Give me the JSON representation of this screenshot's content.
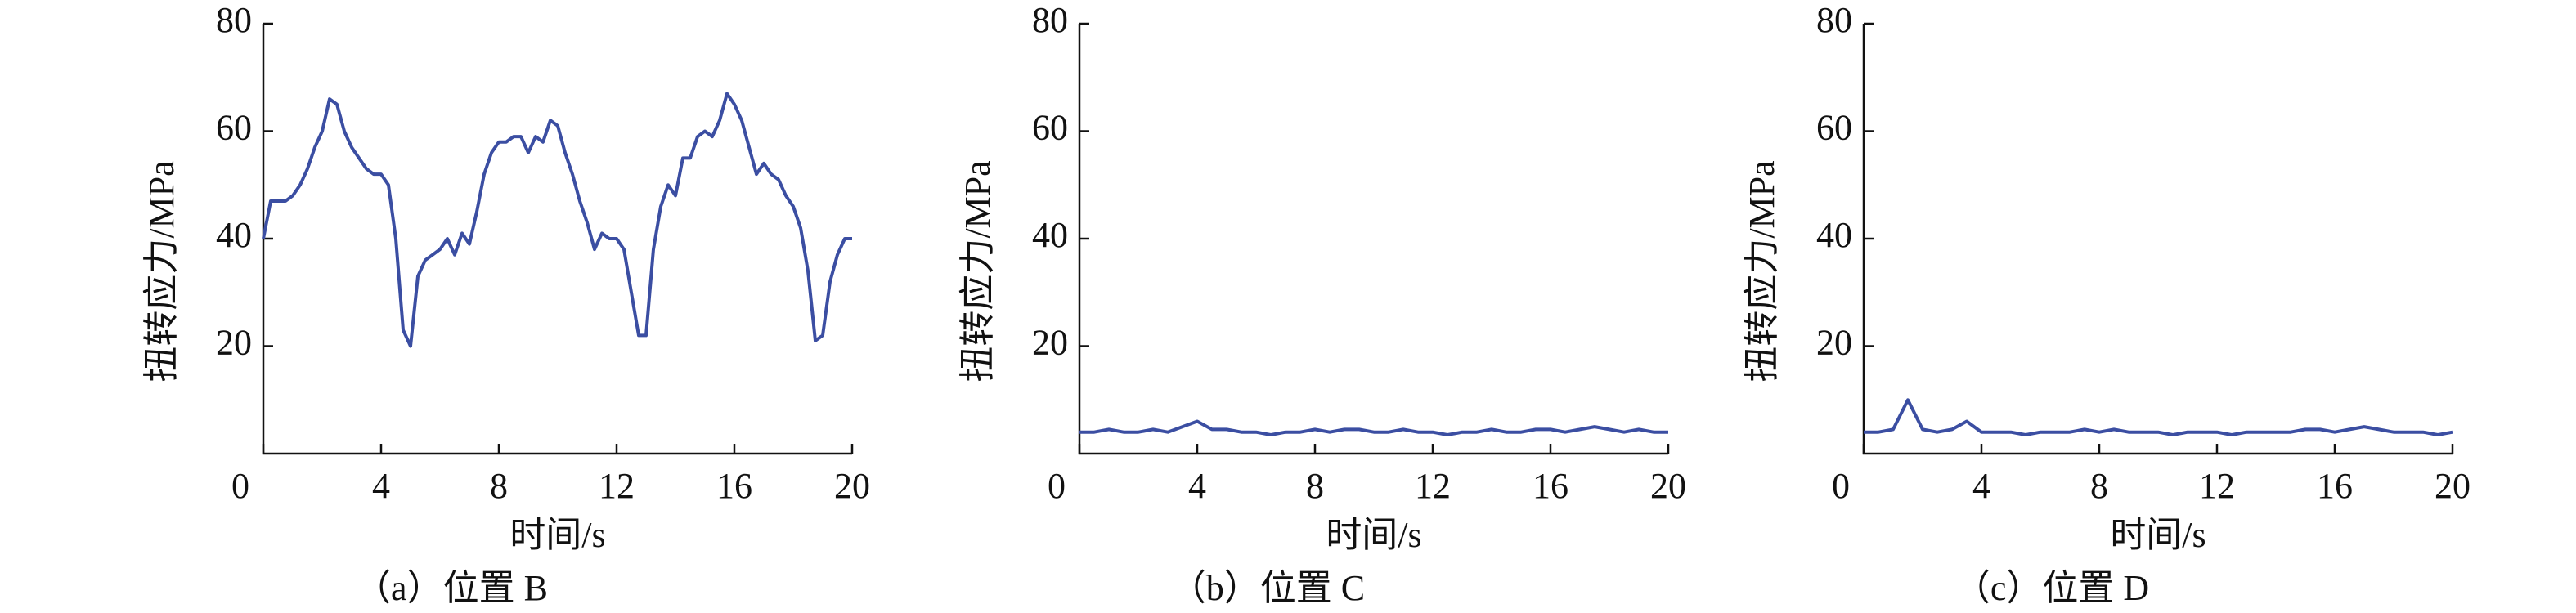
{
  "chart_data": [
    {
      "type": "line",
      "caption": "（a）位置 B",
      "x_label": "时间/s",
      "y_label": "扭转应力/MPa",
      "xlim": [
        0,
        20
      ],
      "ylim": [
        0,
        80
      ],
      "xticks": [
        0,
        4,
        8,
        12,
        16,
        20
      ],
      "yticks": [
        20,
        40,
        60,
        80
      ],
      "series": [
        {
          "name": "位置 B",
          "color": "#3b4ea2",
          "x": [
            0,
            0.25,
            0.5,
            0.75,
            1,
            1.25,
            1.5,
            1.75,
            2,
            2.25,
            2.5,
            2.75,
            3,
            3.25,
            3.5,
            3.75,
            4,
            4.25,
            4.5,
            4.75,
            5,
            5.25,
            5.5,
            5.75,
            6,
            6.25,
            6.5,
            6.75,
            7,
            7.25,
            7.5,
            7.75,
            8,
            8.25,
            8.5,
            8.75,
            9,
            9.25,
            9.5,
            9.75,
            10,
            10.25,
            10.5,
            10.75,
            11,
            11.25,
            11.5,
            11.75,
            12,
            12.25,
            12.5,
            12.75,
            13,
            13.25,
            13.5,
            13.75,
            14,
            14.25,
            14.5,
            14.75,
            15,
            15.25,
            15.5,
            15.75,
            16,
            16.25,
            16.5,
            16.75,
            17,
            17.25,
            17.5,
            17.75,
            18,
            18.25,
            18.5,
            18.75,
            19,
            19.25,
            19.5,
            19.75,
            20
          ],
          "values": [
            40,
            47,
            47,
            47,
            48,
            50,
            53,
            57,
            60,
            66,
            65,
            60,
            57,
            55,
            53,
            52,
            52,
            50,
            40,
            23,
            20,
            33,
            36,
            37,
            38,
            40,
            37,
            41,
            39,
            45,
            52,
            56,
            58,
            58,
            59,
            59,
            56,
            59,
            58,
            62,
            61,
            56,
            52,
            47,
            43,
            38,
            41,
            40,
            40,
            38,
            30,
            22,
            22,
            38,
            46,
            50,
            48,
            55,
            55,
            59,
            60,
            59,
            62,
            67,
            65,
            62,
            57,
            52,
            54,
            52,
            51,
            48,
            46,
            42,
            34,
            21,
            22,
            32,
            37,
            40,
            40
          ]
        }
      ]
    },
    {
      "type": "line",
      "caption": "（b）位置 C",
      "x_label": "时间/s",
      "y_label": "扭转应力/MPa",
      "xlim": [
        0,
        20
      ],
      "ylim": [
        0,
        80
      ],
      "xticks": [
        0,
        4,
        8,
        12,
        16,
        20
      ],
      "yticks": [
        20,
        40,
        60,
        80
      ],
      "series": [
        {
          "name": "位置 C",
          "color": "#3b4ea2",
          "x": [
            0,
            0.5,
            1,
            1.5,
            2,
            2.5,
            3,
            3.5,
            4,
            4.5,
            5,
            5.5,
            6,
            6.5,
            7,
            7.5,
            8,
            8.5,
            9,
            9.5,
            10,
            10.5,
            11,
            11.5,
            12,
            12.5,
            13,
            13.5,
            14,
            14.5,
            15,
            15.5,
            16,
            16.5,
            17,
            17.5,
            18,
            18.5,
            19,
            19.5,
            20
          ],
          "values": [
            4,
            4,
            4.5,
            4,
            4,
            4.5,
            4,
            5,
            6,
            4.5,
            4.5,
            4,
            4,
            3.5,
            4,
            4,
            4.5,
            4,
            4.5,
            4.5,
            4,
            4,
            4.5,
            4,
            4,
            3.5,
            4,
            4,
            4.5,
            4,
            4,
            4.5,
            4.5,
            4,
            4.5,
            5,
            4.5,
            4,
            4.5,
            4,
            4
          ]
        }
      ]
    },
    {
      "type": "line",
      "caption": "（c）位置 D",
      "x_label": "时间/s",
      "y_label": "扭转应力/MPa",
      "xlim": [
        0,
        20
      ],
      "ylim": [
        0,
        80
      ],
      "xticks": [
        0,
        4,
        8,
        12,
        16,
        20
      ],
      "yticks": [
        20,
        40,
        60,
        80
      ],
      "series": [
        {
          "name": "位置 D",
          "color": "#3b4ea2",
          "x": [
            0,
            0.5,
            1,
            1.5,
            2,
            2.5,
            3,
            3.5,
            4,
            4.5,
            5,
            5.5,
            6,
            6.5,
            7,
            7.5,
            8,
            8.5,
            9,
            9.5,
            10,
            10.5,
            11,
            11.5,
            12,
            12.5,
            13,
            13.5,
            14,
            14.5,
            15,
            15.5,
            16,
            16.5,
            17,
            17.5,
            18,
            18.5,
            19,
            19.5,
            20
          ],
          "values": [
            4,
            4,
            4.5,
            10,
            4.5,
            4,
            4.5,
            6,
            4,
            4,
            4,
            3.5,
            4,
            4,
            4,
            4.5,
            4,
            4.5,
            4,
            4,
            4,
            3.5,
            4,
            4,
            4,
            3.5,
            4,
            4,
            4,
            4,
            4.5,
            4.5,
            4,
            4.5,
            5,
            4.5,
            4,
            4,
            4,
            3.5,
            4
          ]
        }
      ]
    }
  ]
}
